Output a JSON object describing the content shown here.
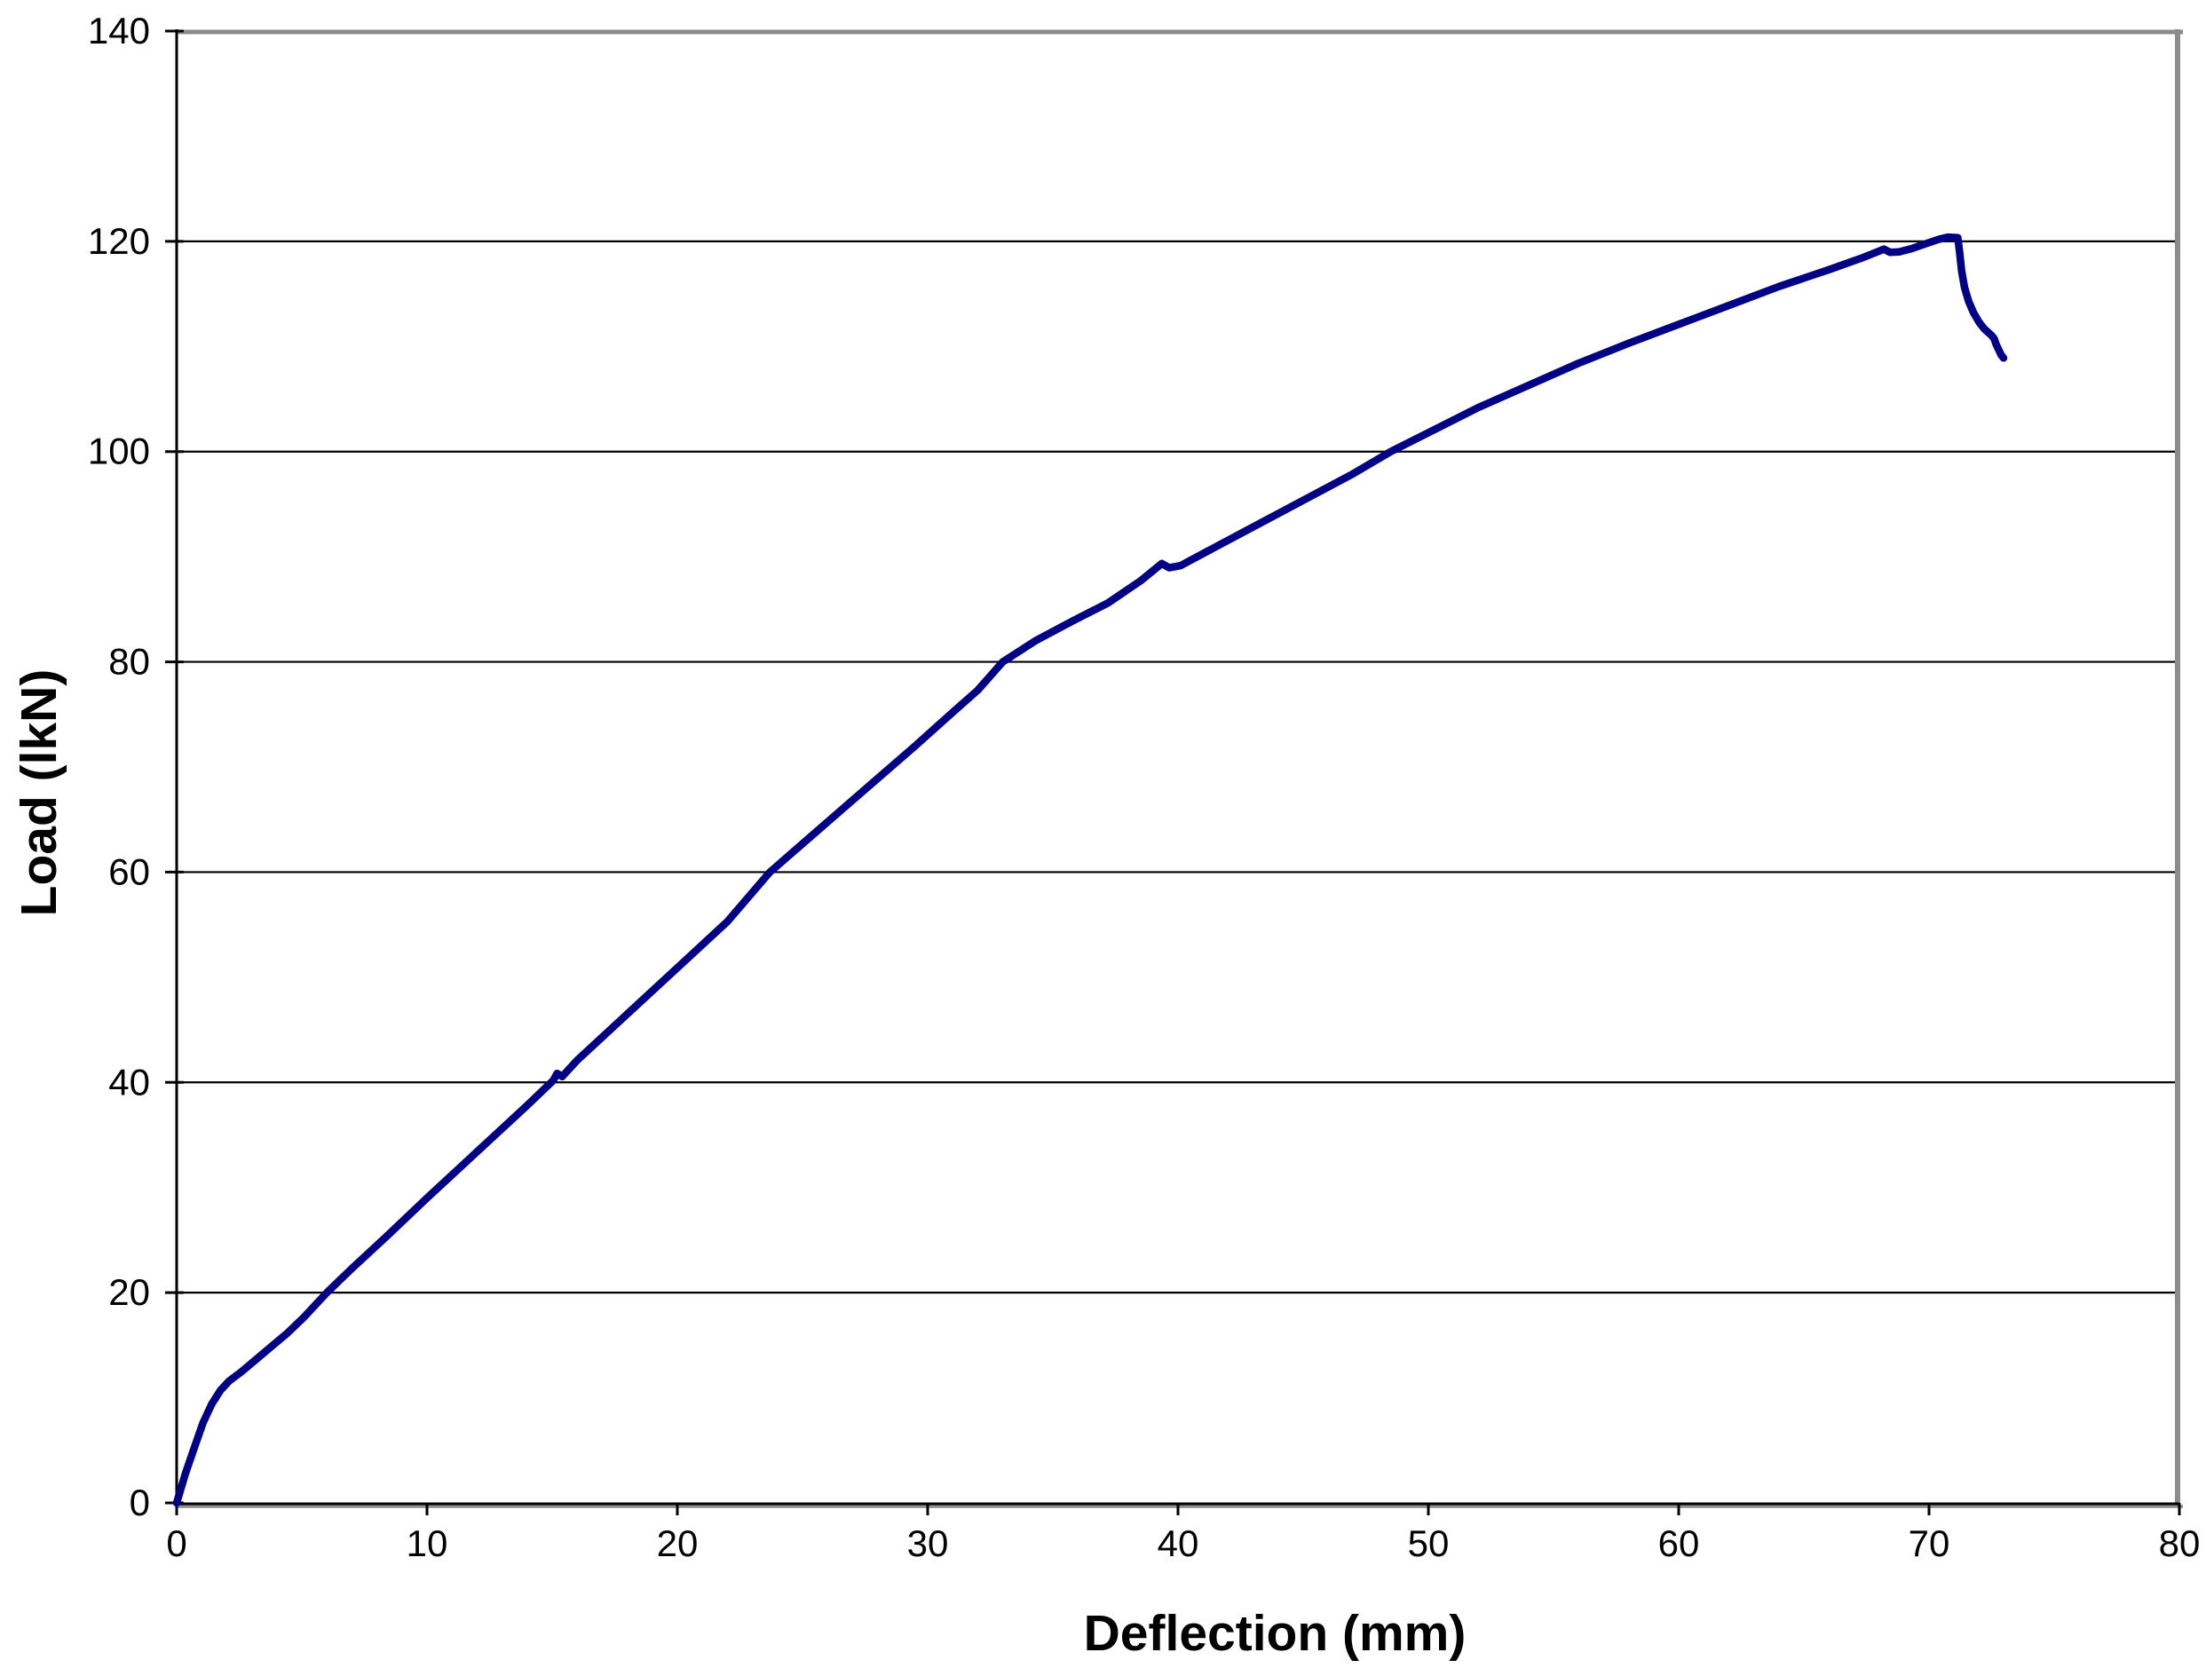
{
  "chart_data": {
    "type": "line",
    "title": "",
    "xlabel": "Deflection (mm)",
    "ylabel": "Load (lkN)",
    "xlim": [
      0,
      80
    ],
    "ylim": [
      0,
      140
    ],
    "x_ticks": [
      0,
      10,
      20,
      30,
      40,
      50,
      60,
      70,
      80
    ],
    "y_ticks": [
      0,
      20,
      40,
      60,
      80,
      100,
      120,
      140
    ],
    "grid": "horizontal-only",
    "legend": "none",
    "line_color": "#000087",
    "frame_color": "#8c8c8c",
    "axis_color": "#000000",
    "series": [
      {
        "name": "load-deflection-curve",
        "points": [
          [
            0,
            0
          ],
          [
            0.35,
            2.8
          ],
          [
            0.7,
            5.2
          ],
          [
            1.05,
            7.6
          ],
          [
            1.4,
            9.4
          ],
          [
            1.75,
            10.7
          ],
          [
            2.1,
            11.6
          ],
          [
            2.6,
            12.5
          ],
          [
            3.1,
            13.5
          ],
          [
            3.7,
            14.7
          ],
          [
            4.4,
            16.1
          ],
          [
            5.1,
            17.7
          ],
          [
            6.0,
            20.0
          ],
          [
            7.0,
            22.3
          ],
          [
            8.5,
            25.6
          ],
          [
            10,
            29.0
          ],
          [
            12,
            33.4
          ],
          [
            14,
            37.8
          ],
          [
            15.05,
            40.2
          ],
          [
            15.2,
            40.85
          ],
          [
            15.4,
            40.55
          ],
          [
            16,
            42.1
          ],
          [
            18,
            46.5
          ],
          [
            20,
            50.9
          ],
          [
            22,
            55.3
          ],
          [
            23.7,
            60.0
          ],
          [
            25,
            62.7
          ],
          [
            26.5,
            65.8
          ],
          [
            28,
            68.9
          ],
          [
            29.5,
            72.0
          ],
          [
            31,
            75.2
          ],
          [
            32,
            77.3
          ],
          [
            33,
            80.0
          ],
          [
            34.3,
            82.0
          ],
          [
            35.8,
            83.9
          ],
          [
            37.2,
            85.6
          ],
          [
            38.5,
            87.7
          ],
          [
            39.35,
            89.35
          ],
          [
            39.65,
            88.95
          ],
          [
            40.1,
            89.15
          ],
          [
            41,
            90.3
          ],
          [
            42.5,
            92.2
          ],
          [
            44,
            94.1
          ],
          [
            45.5,
            96.0
          ],
          [
            47,
            97.9
          ],
          [
            48.5,
            100.0
          ],
          [
            50,
            101.8
          ],
          [
            52,
            104.2
          ],
          [
            54,
            106.3
          ],
          [
            56,
            108.4
          ],
          [
            58,
            110.3
          ],
          [
            60,
            112.1
          ],
          [
            62,
            113.9
          ],
          [
            64,
            115.7
          ],
          [
            66,
            117.3
          ],
          [
            67.3,
            118.4
          ],
          [
            68.2,
            119.25
          ],
          [
            68.45,
            118.95
          ],
          [
            68.8,
            119.0
          ],
          [
            69.3,
            119.3
          ],
          [
            69.9,
            119.8
          ],
          [
            70.4,
            120.2
          ],
          [
            70.75,
            120.4
          ],
          [
            71.15,
            120.35
          ],
          [
            71.22,
            119.0
          ],
          [
            71.3,
            117.2
          ],
          [
            71.42,
            115.6
          ],
          [
            71.58,
            114.3
          ],
          [
            71.78,
            113.2
          ],
          [
            72.0,
            112.3
          ],
          [
            72.2,
            111.7
          ],
          [
            72.38,
            111.3
          ],
          [
            72.5,
            111.05
          ],
          [
            72.6,
            110.75
          ],
          [
            72.68,
            110.2
          ],
          [
            72.78,
            109.7
          ],
          [
            72.88,
            109.2
          ],
          [
            72.98,
            108.9
          ]
        ]
      }
    ]
  }
}
